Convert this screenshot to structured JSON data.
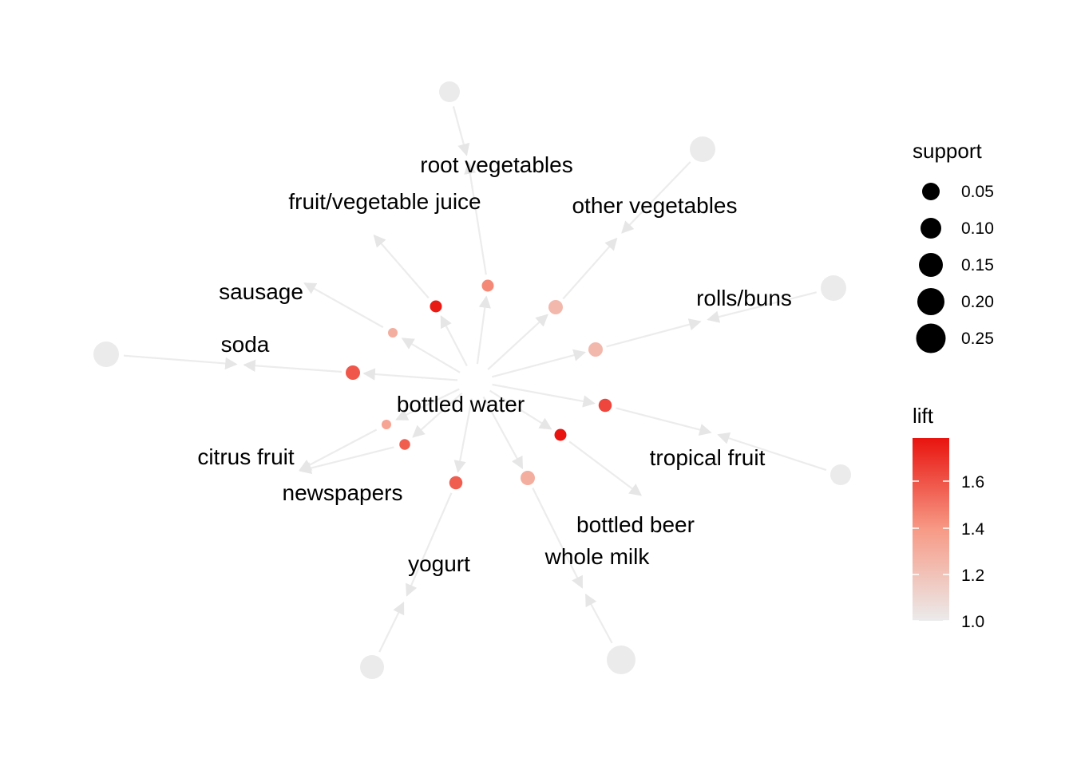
{
  "colors": {
    "edge": "#ececec",
    "item_node": "#ebebeb",
    "lift_low": "#ebebeb",
    "lift_high": "#e8140f"
  },
  "center_label": "bottled water",
  "items": [
    {
      "id": "root_vegetables",
      "label": "root vegetables"
    },
    {
      "id": "fruit_vegetable_juice",
      "label": "fruit/vegetable juice"
    },
    {
      "id": "other_vegetables",
      "label": "other vegetables"
    },
    {
      "id": "sausage",
      "label": "sausage"
    },
    {
      "id": "rolls_buns",
      "label": "rolls/buns"
    },
    {
      "id": "soda",
      "label": "soda"
    },
    {
      "id": "bottled_water",
      "label": "bottled water"
    },
    {
      "id": "citrus_fruit",
      "label": "citrus fruit"
    },
    {
      "id": "tropical_fruit",
      "label": "tropical fruit"
    },
    {
      "id": "newspapers",
      "label": "newspapers"
    },
    {
      "id": "bottled_beer",
      "label": "bottled beer"
    },
    {
      "id": "whole_milk",
      "label": "whole milk"
    },
    {
      "id": "yogurt",
      "label": "yogurt"
    }
  ],
  "rules": [
    {
      "lhs": "root_vegetables",
      "rhs": "bottled_water",
      "lift": 1.45,
      "support": 0.02
    },
    {
      "lhs": "fruit_vegetable_juice",
      "rhs": "bottled_water",
      "lift": 1.78,
      "support": 0.02
    },
    {
      "lhs": "other_vegetables",
      "rhs": "bottled_water",
      "lift": 1.25,
      "support": 0.03
    },
    {
      "lhs": "sausage",
      "rhs": "bottled_water",
      "lift": 1.3,
      "support": 0.01
    },
    {
      "lhs": "rolls_buns",
      "rhs": "bottled_water",
      "lift": 1.25,
      "support": 0.03
    },
    {
      "lhs": "soda",
      "rhs": "bottled_water",
      "lift": 1.6,
      "support": 0.03
    },
    {
      "lhs": "citrus_fruit",
      "rhs": "bottled_water",
      "lift": 1.35,
      "support": 0.01
    },
    {
      "lhs": "tropical_fruit",
      "rhs": "bottled_water",
      "lift": 1.65,
      "support": 0.025
    },
    {
      "lhs": "newspapers",
      "rhs": "bottled_water",
      "lift": 1.58,
      "support": 0.015
    },
    {
      "lhs": "bottled_beer",
      "rhs": "bottled_water",
      "lift": 1.8,
      "support": 0.02
    },
    {
      "lhs": "whole_milk",
      "rhs": "bottled_water",
      "lift": 1.3,
      "support": 0.035
    },
    {
      "lhs": "yogurt",
      "rhs": "bottled_water",
      "lift": 1.58,
      "support": 0.025
    }
  ],
  "legend": {
    "support_title": "support",
    "support_values": [
      "0.05",
      "0.10",
      "0.15",
      "0.20",
      "0.25"
    ],
    "lift_title": "lift",
    "lift_ticks": [
      "1.0",
      "1.2",
      "1.4",
      "1.6"
    ]
  }
}
